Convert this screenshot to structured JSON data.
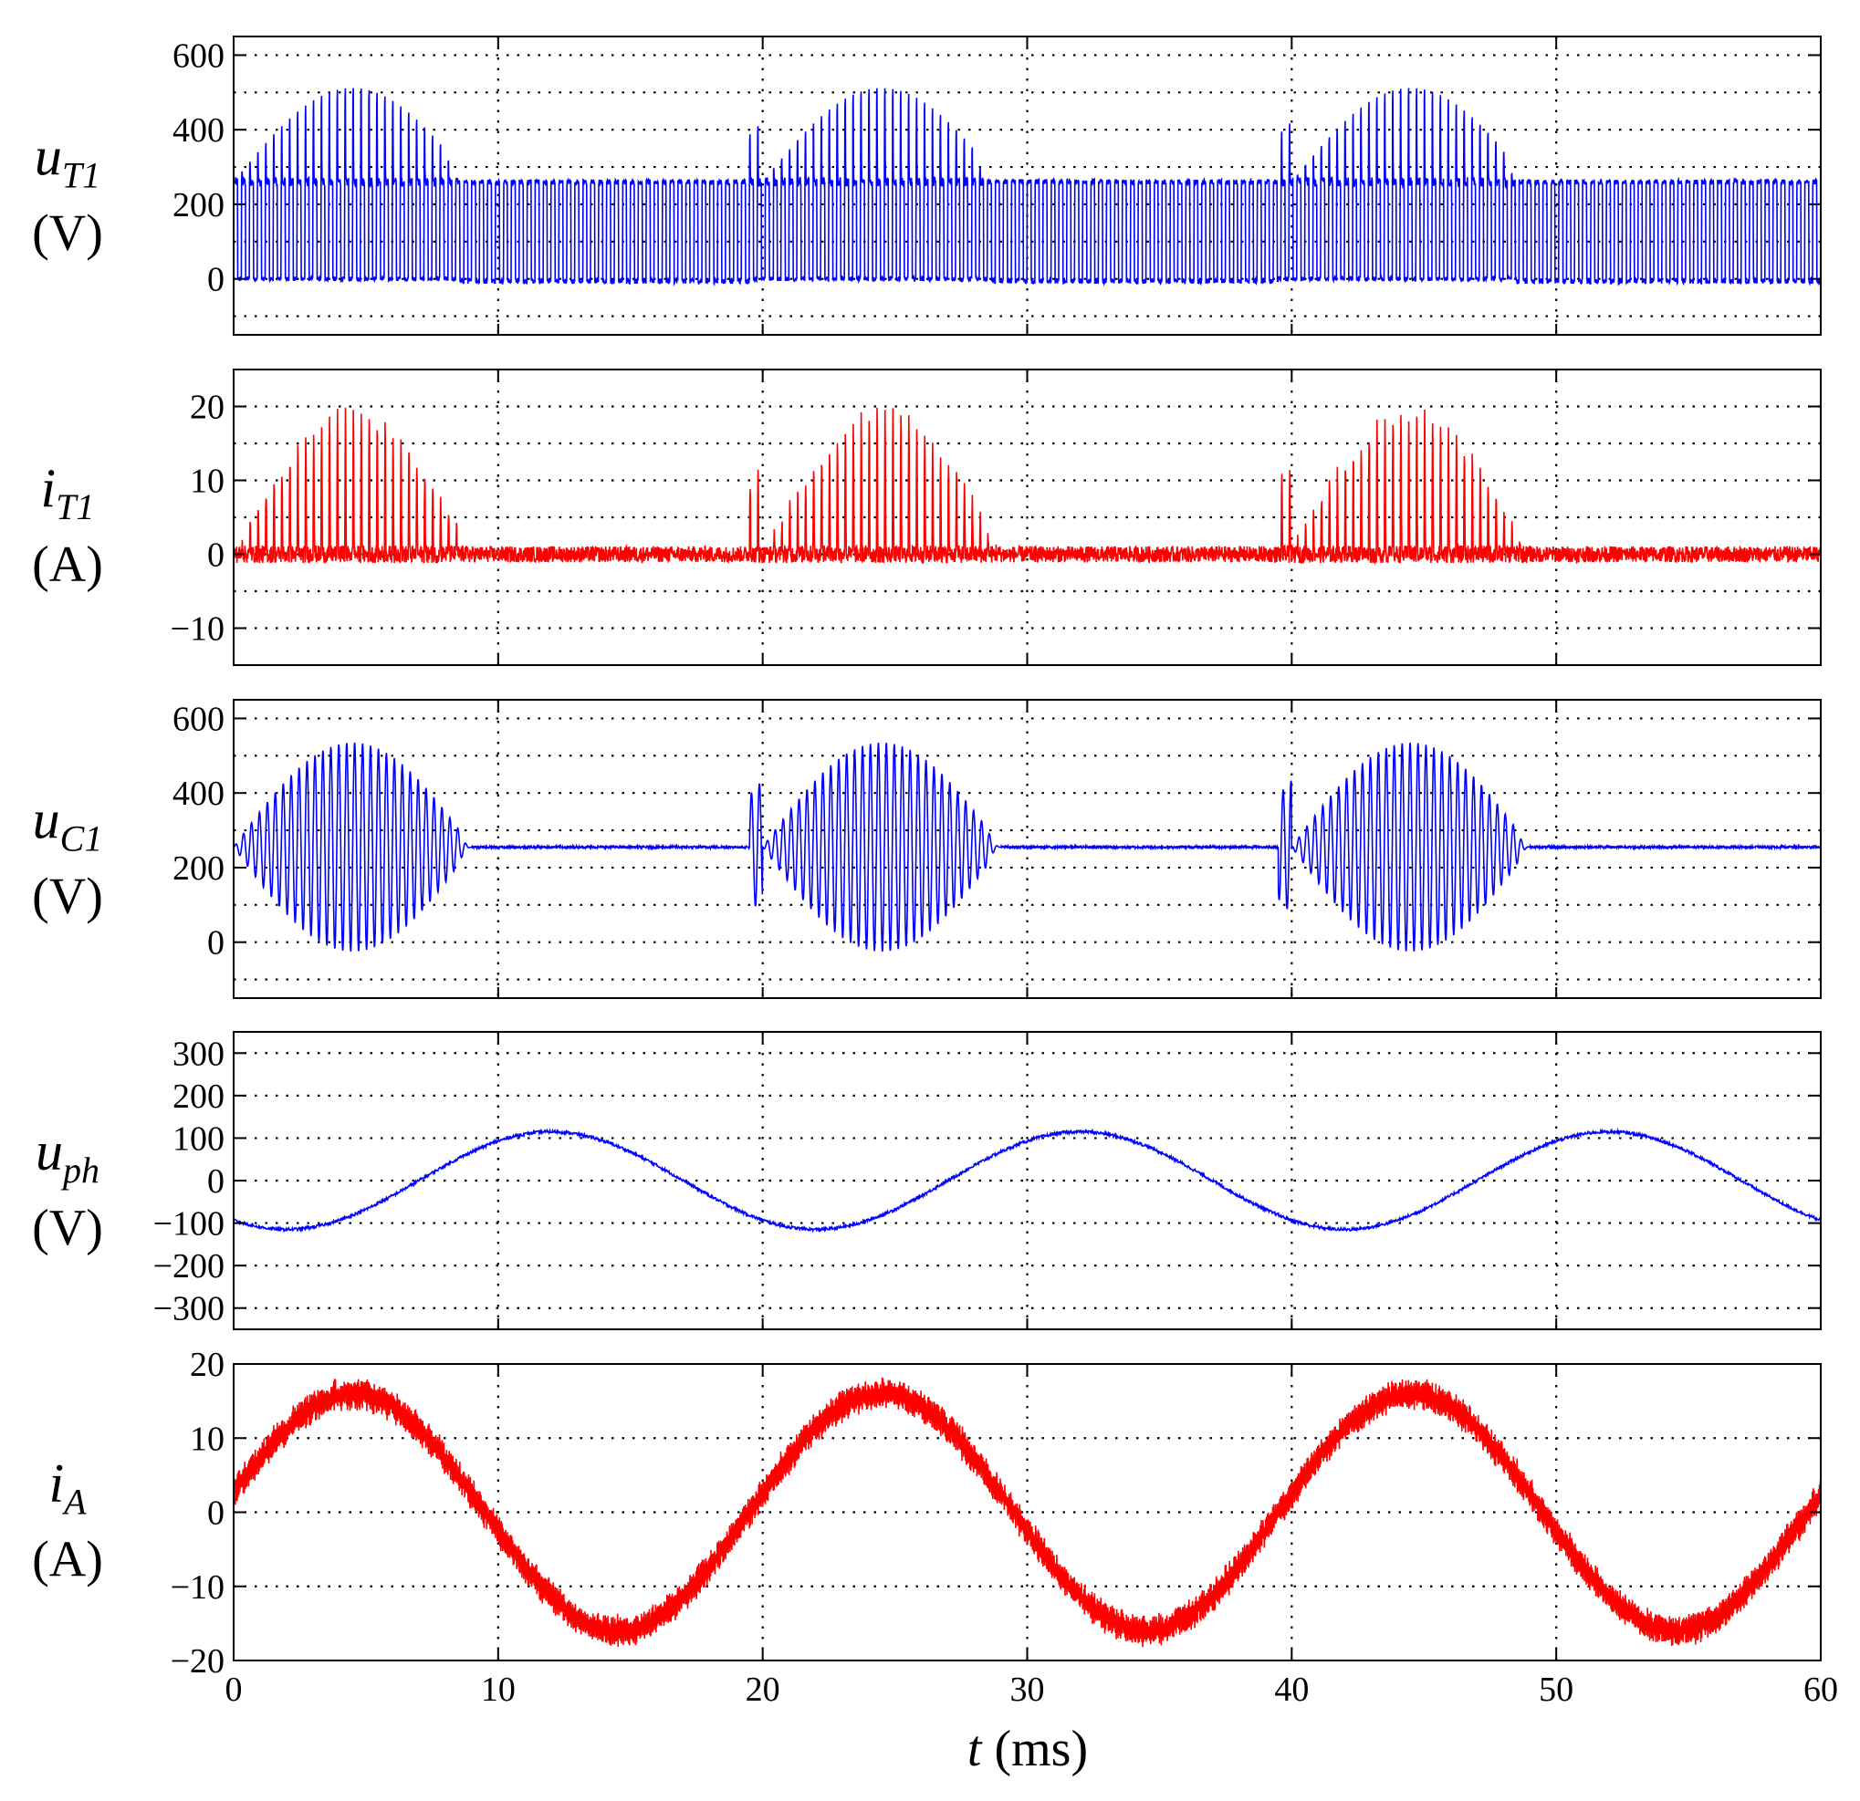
{
  "chart_data": {
    "type": "line",
    "xlabel_var": "t",
    "xlabel_unit": "(ms)",
    "xlim": [
      0,
      60
    ],
    "xticks": [
      0,
      10,
      20,
      30,
      40,
      50,
      60
    ],
    "xtick_labels": [
      "0",
      "10",
      "20",
      "30",
      "40",
      "50",
      "60"
    ],
    "grid": true,
    "fundamental_period_ms": 20,
    "panels": [
      {
        "id": "uT1",
        "ylabel_var": "u",
        "ylabel_sub": "T1",
        "ylabel_unit": "(V)",
        "color": "#0000ff",
        "ylim": [
          -150,
          650
        ],
        "yticks": [
          0,
          200,
          400,
          600
        ],
        "ytick_labels": [
          "0",
          "200",
          "400",
          "600"
        ],
        "grid_y": [
          -100,
          0,
          100,
          200,
          300,
          400,
          500,
          600
        ],
        "description": "switching voltage 0/250 V with bursts up to ~530 V",
        "bus_voltage": 260,
        "peak_voltage": 530,
        "burst_windows_ms": [
          [
            0,
            8.5
          ],
          [
            19.5,
            28.5
          ],
          [
            39.5,
            48.5
          ]
        ]
      },
      {
        "id": "iT1",
        "ylabel_var": "i",
        "ylabel_sub": "T1",
        "ylabel_unit": "(A)",
        "color": "#ff0000",
        "ylim": [
          -15,
          25
        ],
        "yticks": [
          -10,
          0,
          10,
          20
        ],
        "ytick_labels": [
          "−10",
          "0",
          "10",
          "20"
        ],
        "grid_y": [
          -10,
          -5,
          0,
          5,
          10,
          15,
          20
        ],
        "peak_current": 19,
        "burst_windows_ms": [
          [
            0,
            9
          ],
          [
            19.5,
            29
          ],
          [
            39.5,
            49
          ]
        ]
      },
      {
        "id": "uC1",
        "ylabel_var": "u",
        "ylabel_sub": "C1",
        "ylabel_unit": "(V)",
        "color": "#0000ff",
        "ylim": [
          -150,
          650
        ],
        "yticks": [
          0,
          200,
          400,
          600
        ],
        "ytick_labels": [
          "0",
          "200",
          "400",
          "600"
        ],
        "grid_y": [
          -100,
          0,
          100,
          200,
          300,
          400,
          500,
          600
        ],
        "center_voltage": 255,
        "peak_voltage": 535,
        "burst_windows_ms": [
          [
            0,
            9
          ],
          [
            19.5,
            29
          ],
          [
            39.5,
            49
          ]
        ]
      },
      {
        "id": "uph",
        "ylabel_var": "u",
        "ylabel_sub": "ph",
        "ylabel_unit": "(V)",
        "color": "#0000ff",
        "ylim": [
          -350,
          350
        ],
        "yticks": [
          -300,
          -200,
          -100,
          0,
          100,
          200,
          300
        ],
        "ytick_labels": [
          "−300",
          "−200",
          "−100",
          "0",
          "100",
          "200",
          "300"
        ],
        "grid_y": [
          -300,
          -200,
          -100,
          0,
          100,
          200,
          300
        ],
        "amplitude": 115,
        "peak_times_ms": [
          12,
          32,
          52
        ],
        "trough_times_ms": [
          2,
          22,
          42
        ]
      },
      {
        "id": "iA",
        "ylabel_var": "i",
        "ylabel_sub": "A",
        "ylabel_unit": "(A)",
        "color": "#ff0000",
        "ylim": [
          -20,
          20
        ],
        "yticks": [
          -20,
          -10,
          0,
          10,
          20
        ],
        "ytick_labels": [
          "−20",
          "−10",
          "0",
          "10",
          "20"
        ],
        "grid_y": [
          -10,
          0,
          10
        ],
        "amplitude": 16,
        "start_value": 5,
        "peak_times_ms": [
          4.5,
          24.5,
          44.5
        ],
        "trough_times_ms": [
          14.5,
          34.5,
          54.5
        ]
      }
    ]
  }
}
